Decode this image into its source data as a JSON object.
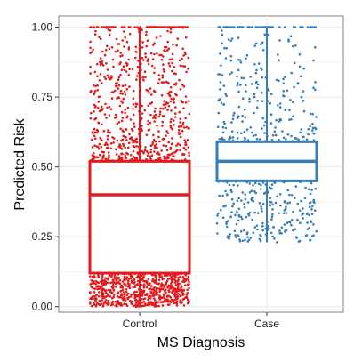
{
  "chart_data": {
    "type": "box",
    "categories": [
      "Control",
      "Case"
    ],
    "xlabel": "MS Diagnosis",
    "ylabel": "Predicted Risk",
    "ylim": [
      -0.02,
      1.04
    ],
    "yticks": [
      0.0,
      0.25,
      0.5,
      0.75,
      1.0
    ],
    "ytick_labels": [
      "0.00",
      "0.25",
      "0.50",
      "0.75",
      "1.00"
    ],
    "grid": true,
    "legend": "none",
    "series": [
      {
        "category": "Control",
        "color": "#e41a1c",
        "whisker_low": 0.0,
        "q1": 0.12,
        "median": 0.4,
        "q3": 0.52,
        "whisker_high": 1.0
      },
      {
        "category": "Case",
        "color": "#377eb8",
        "whisker_low": 0.23,
        "q1": 0.45,
        "median": 0.52,
        "q3": 0.59,
        "whisker_high": 1.0
      }
    ]
  }
}
